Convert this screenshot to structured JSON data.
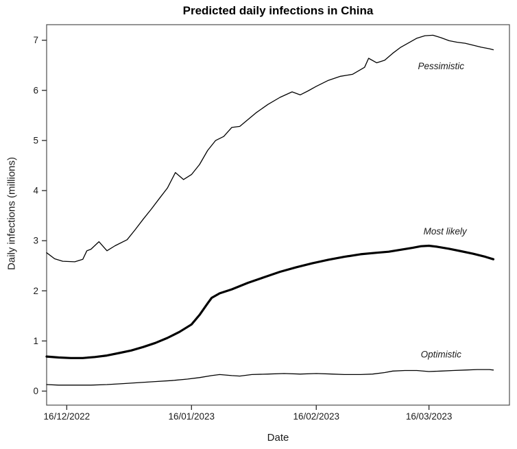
{
  "chart_data": {
    "type": "line",
    "title": "Predicted daily infections in China",
    "xlabel": "Date",
    "ylabel": "Daily infections (millions)",
    "ylim": [
      0,
      7
    ],
    "y_ticks": [
      0,
      1,
      2,
      3,
      4,
      5,
      6,
      7
    ],
    "x_ticks": [
      {
        "date": "2022-12-16",
        "label": "16/12/2022"
      },
      {
        "date": "2023-01-16",
        "label": "16/01/2023"
      },
      {
        "date": "2023-02-16",
        "label": "16/02/2023"
      },
      {
        "date": "2023-03-16",
        "label": "16/03/2023"
      }
    ],
    "grid": false,
    "legend_position": "inline-annotations",
    "colors": {
      "line": "#000000",
      "frame": "#4d4d4d",
      "tick": "#333333",
      "text": "#1a1a1a"
    },
    "series": [
      {
        "name": "Pessimistic",
        "emphasis": "thin",
        "points": [
          [
            "2022-12-11",
            2.76
          ],
          [
            "2022-12-13",
            2.64
          ],
          [
            "2022-12-15",
            2.59
          ],
          [
            "2022-12-18",
            2.58
          ],
          [
            "2022-12-20",
            2.63
          ],
          [
            "2022-12-21",
            2.8
          ],
          [
            "2022-12-22",
            2.83
          ],
          [
            "2022-12-24",
            2.98
          ],
          [
            "2022-12-26",
            2.8
          ],
          [
            "2022-12-28",
            2.9
          ],
          [
            "2022-12-31",
            3.02
          ],
          [
            "2023-01-02",
            3.22
          ],
          [
            "2023-01-04",
            3.43
          ],
          [
            "2023-01-06",
            3.63
          ],
          [
            "2023-01-08",
            3.84
          ],
          [
            "2023-01-10",
            4.05
          ],
          [
            "2023-01-12",
            4.36
          ],
          [
            "2023-01-14",
            4.22
          ],
          [
            "2023-01-16",
            4.32
          ],
          [
            "2023-01-18",
            4.52
          ],
          [
            "2023-01-20",
            4.8
          ],
          [
            "2023-01-22",
            5.0
          ],
          [
            "2023-01-24",
            5.08
          ],
          [
            "2023-01-26",
            5.26
          ],
          [
            "2023-01-28",
            5.28
          ],
          [
            "2023-02-01",
            5.55
          ],
          [
            "2023-02-04",
            5.72
          ],
          [
            "2023-02-07",
            5.86
          ],
          [
            "2023-02-10",
            5.97
          ],
          [
            "2023-02-12",
            5.91
          ],
          [
            "2023-02-14",
            5.99
          ],
          [
            "2023-02-16",
            6.08
          ],
          [
            "2023-02-19",
            6.2
          ],
          [
            "2023-02-22",
            6.28
          ],
          [
            "2023-02-25",
            6.32
          ],
          [
            "2023-02-28",
            6.46
          ],
          [
            "2023-03-01",
            6.64
          ],
          [
            "2023-03-03",
            6.55
          ],
          [
            "2023-03-05",
            6.6
          ],
          [
            "2023-03-07",
            6.74
          ],
          [
            "2023-03-09",
            6.86
          ],
          [
            "2023-03-11",
            6.95
          ],
          [
            "2023-03-13",
            7.04
          ],
          [
            "2023-03-15",
            7.09
          ],
          [
            "2023-03-17",
            7.1
          ],
          [
            "2023-03-19",
            7.05
          ],
          [
            "2023-03-21",
            6.99
          ],
          [
            "2023-03-23",
            6.96
          ],
          [
            "2023-03-25",
            6.94
          ],
          [
            "2023-03-27",
            6.9
          ],
          [
            "2023-03-29",
            6.86
          ],
          [
            "2023-03-31",
            6.83
          ],
          [
            "2023-04-01",
            6.81
          ]
        ]
      },
      {
        "name": "Most likely",
        "emphasis": "thick",
        "points": [
          [
            "2022-12-11",
            0.69
          ],
          [
            "2022-12-14",
            0.67
          ],
          [
            "2022-12-17",
            0.66
          ],
          [
            "2022-12-20",
            0.66
          ],
          [
            "2022-12-23",
            0.68
          ],
          [
            "2022-12-26",
            0.71
          ],
          [
            "2022-12-29",
            0.76
          ],
          [
            "2023-01-01",
            0.81
          ],
          [
            "2023-01-04",
            0.88
          ],
          [
            "2023-01-07",
            0.96
          ],
          [
            "2023-01-10",
            1.06
          ],
          [
            "2023-01-13",
            1.18
          ],
          [
            "2023-01-16",
            1.33
          ],
          [
            "2023-01-18",
            1.52
          ],
          [
            "2023-01-20",
            1.75
          ],
          [
            "2023-01-21",
            1.86
          ],
          [
            "2023-01-23",
            1.95
          ],
          [
            "2023-01-26",
            2.03
          ],
          [
            "2023-01-30",
            2.16
          ],
          [
            "2023-02-03",
            2.27
          ],
          [
            "2023-02-07",
            2.38
          ],
          [
            "2023-02-11",
            2.47
          ],
          [
            "2023-02-15",
            2.55
          ],
          [
            "2023-02-19",
            2.62
          ],
          [
            "2023-02-23",
            2.68
          ],
          [
            "2023-02-27",
            2.73
          ],
          [
            "2023-03-03",
            2.76
          ],
          [
            "2023-03-06",
            2.78
          ],
          [
            "2023-03-09",
            2.82
          ],
          [
            "2023-03-12",
            2.86
          ],
          [
            "2023-03-14",
            2.89
          ],
          [
            "2023-03-16",
            2.9
          ],
          [
            "2023-03-18",
            2.88
          ],
          [
            "2023-03-21",
            2.84
          ],
          [
            "2023-03-24",
            2.79
          ],
          [
            "2023-03-27",
            2.74
          ],
          [
            "2023-03-30",
            2.68
          ],
          [
            "2023-04-01",
            2.63
          ]
        ]
      },
      {
        "name": "Optimistic",
        "emphasis": "thin",
        "points": [
          [
            "2022-12-11",
            0.13
          ],
          [
            "2022-12-14",
            0.12
          ],
          [
            "2022-12-18",
            0.12
          ],
          [
            "2022-12-22",
            0.12
          ],
          [
            "2022-12-26",
            0.13
          ],
          [
            "2022-12-30",
            0.15
          ],
          [
            "2023-01-03",
            0.17
          ],
          [
            "2023-01-07",
            0.19
          ],
          [
            "2023-01-11",
            0.21
          ],
          [
            "2023-01-15",
            0.24
          ],
          [
            "2023-01-18",
            0.27
          ],
          [
            "2023-01-21",
            0.31
          ],
          [
            "2023-01-23",
            0.33
          ],
          [
            "2023-01-26",
            0.31
          ],
          [
            "2023-01-28",
            0.3
          ],
          [
            "2023-01-31",
            0.33
          ],
          [
            "2023-02-04",
            0.34
          ],
          [
            "2023-02-08",
            0.35
          ],
          [
            "2023-02-12",
            0.34
          ],
          [
            "2023-02-16",
            0.35
          ],
          [
            "2023-02-20",
            0.34
          ],
          [
            "2023-02-23",
            0.33
          ],
          [
            "2023-02-27",
            0.33
          ],
          [
            "2023-03-02",
            0.34
          ],
          [
            "2023-03-05",
            0.37
          ],
          [
            "2023-03-07",
            0.4
          ],
          [
            "2023-03-10",
            0.41
          ],
          [
            "2023-03-13",
            0.41
          ],
          [
            "2023-03-16",
            0.39
          ],
          [
            "2023-03-19",
            0.4
          ],
          [
            "2023-03-22",
            0.41
          ],
          [
            "2023-03-25",
            0.42
          ],
          [
            "2023-03-28",
            0.43
          ],
          [
            "2023-03-31",
            0.43
          ],
          [
            "2023-04-01",
            0.42
          ]
        ]
      }
    ],
    "annotations": [
      {
        "text": "Pessimistic",
        "date": "2023-03-19",
        "value": 6.48
      },
      {
        "text": "Most likely",
        "date": "2023-03-20",
        "value": 3.19
      },
      {
        "text": "Optimistic",
        "date": "2023-03-19",
        "value": 0.73
      }
    ]
  }
}
